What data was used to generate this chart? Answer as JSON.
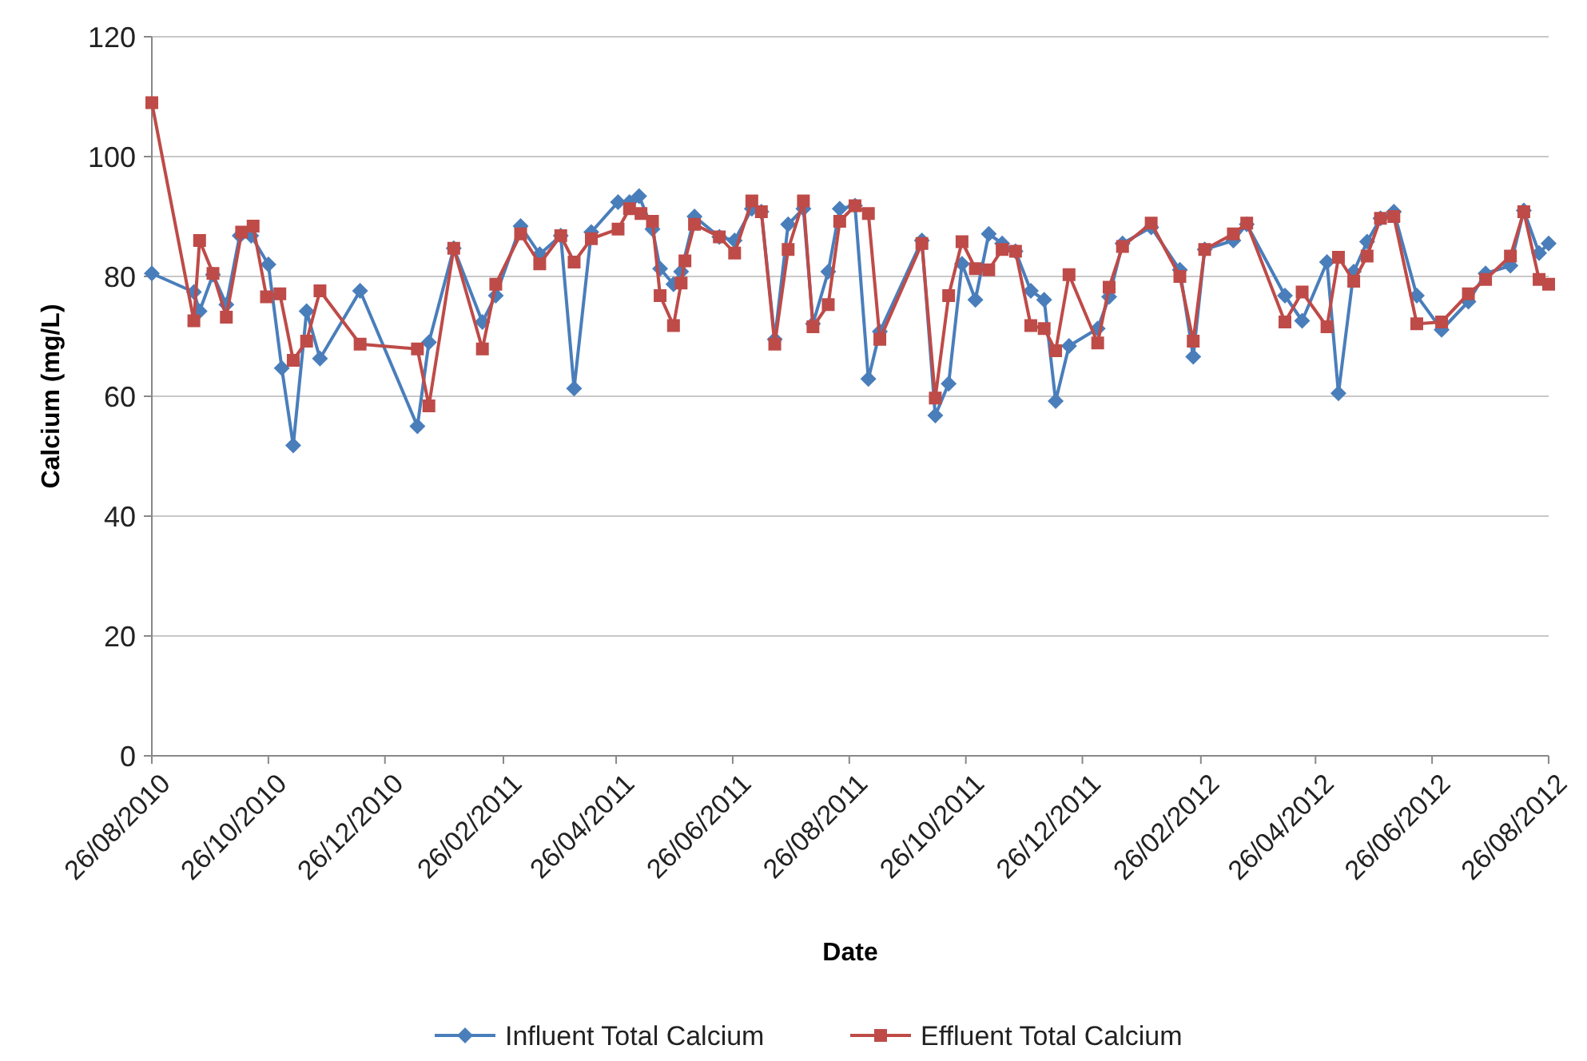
{
  "chart_data": {
    "type": "line",
    "xlabel": "Date",
    "ylabel": "Calcium (mg/L)",
    "ylim": [
      0,
      120
    ],
    "yticks": [
      0,
      20,
      40,
      60,
      80,
      100,
      120
    ],
    "grid": "y",
    "legend": "bottom",
    "line_style": "solid",
    "xlim": [
      "2010-08-26",
      "2012-08-26"
    ],
    "xticks": [
      {
        "value": "2010-08-26",
        "label": "26/08/2010"
      },
      {
        "value": "2010-10-26",
        "label": "26/10/2010"
      },
      {
        "value": "2010-12-26",
        "label": "26/12/2010"
      },
      {
        "value": "2011-02-26",
        "label": "26/02/2011"
      },
      {
        "value": "2011-04-26",
        "label": "26/04/2011"
      },
      {
        "value": "2011-06-26",
        "label": "26/06/2011"
      },
      {
        "value": "2011-08-26",
        "label": "26/08/2011"
      },
      {
        "value": "2011-10-26",
        "label": "26/10/2011"
      },
      {
        "value": "2011-12-26",
        "label": "26/12/2011"
      },
      {
        "value": "2012-02-26",
        "label": "26/02/2012"
      },
      {
        "value": "2012-04-26",
        "label": "26/04/2012"
      },
      {
        "value": "2012-06-26",
        "label": "26/06/2012"
      },
      {
        "value": "2012-08-26",
        "label": "26/08/2012"
      }
    ],
    "series": [
      {
        "name": "Influent Total Calcium",
        "color": "#4a7ebb",
        "marker": "diamond",
        "x": [
          "2010-08-26",
          "2010-09-17",
          "2010-09-20",
          "2010-09-27",
          "2010-10-04",
          "2010-10-11",
          "2010-10-17",
          "2010-10-26",
          "2010-11-02",
          "2010-11-08",
          "2010-11-15",
          "2010-11-22",
          "2010-12-13",
          "2011-01-12",
          "2011-01-18",
          "2011-01-31",
          "2011-02-15",
          "2011-02-22",
          "2011-03-07",
          "2011-03-17",
          "2011-03-28",
          "2011-04-04",
          "2011-04-13",
          "2011-04-27",
          "2011-05-03",
          "2011-05-08",
          "2011-05-15",
          "2011-05-19",
          "2011-05-26",
          "2011-05-30",
          "2011-06-06",
          "2011-06-19",
          "2011-06-27",
          "2011-07-06",
          "2011-07-11",
          "2011-07-18",
          "2011-07-25",
          "2011-08-02",
          "2011-08-07",
          "2011-08-15",
          "2011-08-21",
          "2011-08-29",
          "2011-09-05",
          "2011-09-11",
          "2011-10-03",
          "2011-10-10",
          "2011-10-17",
          "2011-10-24",
          "2011-10-31",
          "2011-11-07",
          "2011-11-14",
          "2011-11-21",
          "2011-11-29",
          "2011-12-06",
          "2011-12-12",
          "2011-12-19",
          "2012-01-03",
          "2012-01-09",
          "2012-01-16",
          "2012-01-31",
          "2012-02-15",
          "2012-02-22",
          "2012-02-28",
          "2012-03-14",
          "2012-03-21",
          "2012-04-10",
          "2012-04-19",
          "2012-05-02",
          "2012-05-08",
          "2012-05-16",
          "2012-05-23",
          "2012-05-30",
          "2012-06-06",
          "2012-06-18",
          "2012-07-01",
          "2012-07-15",
          "2012-07-24",
          "2012-08-06",
          "2012-08-13",
          "2012-08-21",
          "2012-08-26"
        ],
        "values": [
          80.5,
          77.4,
          74.2,
          80.3,
          75.3,
          86.8,
          86.8,
          82,
          64.7,
          51.8,
          74.2,
          66.3,
          77.6,
          55,
          69,
          84.7,
          72.4,
          76.8,
          88.4,
          83.7,
          86.8,
          61.3,
          87.4,
          92.4,
          92.4,
          93.4,
          87.9,
          81.3,
          78.7,
          80.8,
          90,
          86.6,
          86,
          91.3,
          90.8,
          69.5,
          88.7,
          91.3,
          72.1,
          80.8,
          91.3,
          91.8,
          62.9,
          70.8,
          86,
          56.8,
          62.1,
          82.1,
          76.1,
          87.1,
          85.5,
          84.2,
          77.6,
          76.1,
          59.2,
          68.4,
          71.3,
          76.6,
          85.5,
          88.2,
          81.1,
          66.6,
          84.5,
          86,
          88.7,
          76.8,
          72.6,
          82.4,
          60.5,
          80.8,
          85.8,
          89.7,
          90.8,
          76.8,
          71.1,
          75.8,
          80.5,
          81.8,
          91,
          83.9,
          85.5
        ]
      },
      {
        "name": "Effluent Total Calcium",
        "color": "#be4b48",
        "marker": "square",
        "x": [
          "2010-08-26",
          "2010-09-17",
          "2010-09-20",
          "2010-09-27",
          "2010-10-04",
          "2010-10-12",
          "2010-10-18",
          "2010-10-25",
          "2010-11-01",
          "2010-11-08",
          "2010-11-15",
          "2010-11-22",
          "2010-12-13",
          "2011-01-12",
          "2011-01-18",
          "2011-01-31",
          "2011-02-15",
          "2011-02-22",
          "2011-03-07",
          "2011-03-17",
          "2011-03-28",
          "2011-04-04",
          "2011-04-13",
          "2011-04-27",
          "2011-05-03",
          "2011-05-09",
          "2011-05-15",
          "2011-05-19",
          "2011-05-26",
          "2011-05-30",
          "2011-06-01",
          "2011-06-06",
          "2011-06-19",
          "2011-06-27",
          "2011-07-06",
          "2011-07-11",
          "2011-07-18",
          "2011-07-25",
          "2011-08-02",
          "2011-08-07",
          "2011-08-15",
          "2011-08-21",
          "2011-08-29",
          "2011-09-05",
          "2011-09-11",
          "2011-10-03",
          "2011-10-10",
          "2011-10-17",
          "2011-10-24",
          "2011-10-31",
          "2011-11-07",
          "2011-11-14",
          "2011-11-21",
          "2011-11-29",
          "2011-12-06",
          "2011-12-12",
          "2011-12-19",
          "2012-01-03",
          "2012-01-09",
          "2012-01-16",
          "2012-01-31",
          "2012-02-15",
          "2012-02-22",
          "2012-02-28",
          "2012-03-14",
          "2012-03-21",
          "2012-04-10",
          "2012-04-19",
          "2012-05-02",
          "2012-05-08",
          "2012-05-16",
          "2012-05-23",
          "2012-05-30",
          "2012-06-06",
          "2012-06-18",
          "2012-07-01",
          "2012-07-15",
          "2012-07-24",
          "2012-08-06",
          "2012-08-13",
          "2012-08-21",
          "2012-08-26"
        ],
        "values": [
          109,
          72.6,
          86,
          80.5,
          73.2,
          87.4,
          88.4,
          76.6,
          77.1,
          66,
          69.2,
          77.6,
          68.7,
          67.9,
          58.4,
          84.7,
          67.9,
          78.7,
          87.1,
          82.1,
          86.8,
          82.4,
          86.3,
          87.9,
          91.3,
          90.5,
          89.2,
          76.8,
          71.8,
          78.9,
          82.6,
          88.7,
          86.6,
          83.9,
          92.6,
          90.8,
          68.7,
          84.5,
          92.6,
          71.6,
          75.3,
          89.2,
          91.8,
          90.5,
          69.5,
          85.5,
          59.7,
          76.8,
          85.8,
          81.3,
          81.1,
          84.5,
          84.2,
          71.8,
          71.3,
          67.6,
          80.3,
          68.9,
          78.2,
          85,
          88.9,
          80,
          69.2,
          84.5,
          87.1,
          88.9,
          72.4,
          77.4,
          71.6,
          83.2,
          79.2,
          83.4,
          89.7,
          90,
          72.1,
          72.4,
          77.1,
          79.5,
          83.4,
          90.8,
          79.5,
          78.7
        ]
      }
    ]
  }
}
